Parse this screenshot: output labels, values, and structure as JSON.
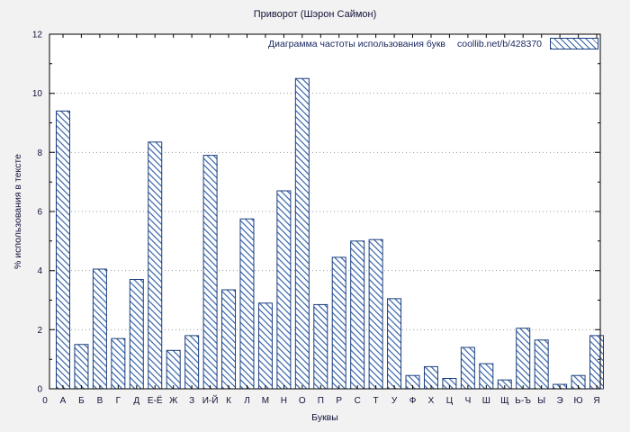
{
  "chart_data": {
    "type": "bar",
    "title": "Приворот (Шэрон Саймон)",
    "legend": {
      "label": "Диаграмма частоты использования букв",
      "source": "coollib.net/b/428370"
    },
    "xlabel": "Буквы",
    "ylabel": "% использования в тексте",
    "origin_label": "0",
    "ylim": [
      0,
      12
    ],
    "yticks": [
      0,
      2,
      4,
      6,
      8,
      10,
      12
    ],
    "grid": "horizontal-dotted",
    "legend_position": "top-right",
    "categories": [
      "А",
      "Б",
      "В",
      "Г",
      "Д",
      "Е-Ё",
      "Ж",
      "З",
      "И-Й",
      "К",
      "Л",
      "М",
      "Н",
      "О",
      "П",
      "Р",
      "С",
      "Т",
      "У",
      "Ф",
      "Х",
      "Ц",
      "Ч",
      "Ш",
      "Щ",
      "Ь-Ъ",
      "Ы",
      "Э",
      "Ю",
      "Я"
    ],
    "values": [
      9.4,
      1.5,
      4.05,
      1.7,
      3.7,
      8.35,
      1.3,
      1.8,
      7.9,
      3.35,
      5.75,
      2.9,
      6.7,
      10.5,
      2.85,
      4.45,
      5.0,
      5.05,
      3.05,
      0.45,
      0.75,
      0.35,
      1.4,
      0.85,
      0.3,
      2.05,
      1.65,
      0.15,
      0.45,
      1.8
    ],
    "colors": {
      "hatch": "#2f5fa5",
      "bar_border": "#1b3e7e",
      "grid": "#9a9a9a",
      "plot_bg": "#ffffff",
      "fig_bg": "#f2f2f2",
      "axis": "#000000",
      "text": "#12123a"
    }
  }
}
